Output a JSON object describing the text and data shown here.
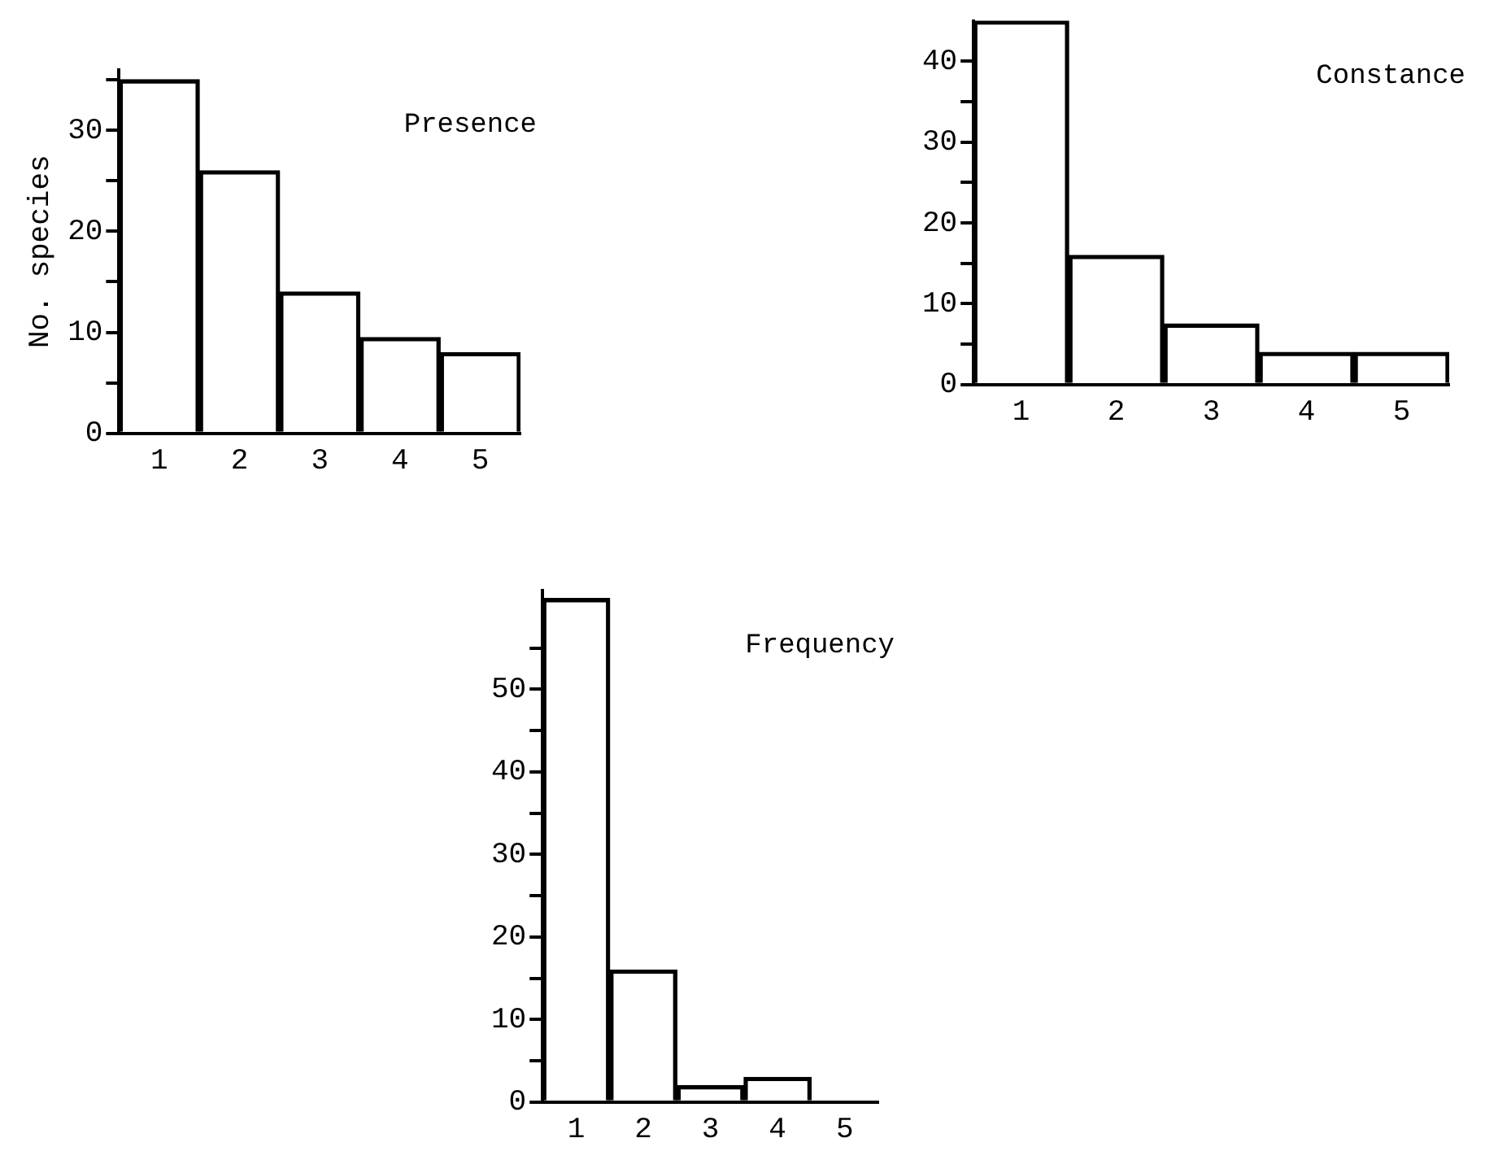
{
  "chart_data": [
    {
      "type": "bar",
      "title": "Presence",
      "ylabel": "No. species",
      "categories": [
        "1",
        "2",
        "3",
        "4",
        "5"
      ],
      "values": [
        35,
        26,
        14,
        9.5,
        8
      ],
      "color": "#000000",
      "ylim": [
        0,
        36
      ],
      "yticks": [
        0,
        {
          "value": 5,
          "label": null
        },
        10,
        {
          "value": 15,
          "label": null
        },
        20,
        {
          "value": 25,
          "label": null
        },
        30,
        {
          "value": 35,
          "label": null
        }
      ],
      "grid": false,
      "legend": false
    },
    {
      "type": "bar",
      "title": "Constance",
      "categories": [
        "1",
        "2",
        "3",
        "4",
        "5"
      ],
      "values": [
        45,
        16,
        7.5,
        4,
        4
      ],
      "color": "#000000",
      "ylim": [
        0,
        45
      ],
      "yticks": [
        0,
        {
          "value": 5,
          "label": null
        },
        10,
        {
          "value": 15,
          "label": null
        },
        20,
        {
          "value": 25,
          "label": null
        },
        30,
        {
          "value": 35,
          "label": null
        },
        40
      ],
      "grid": false,
      "legend": false
    },
    {
      "type": "bar",
      "title": "Frequency",
      "categories": [
        "1",
        "2",
        "3",
        "4",
        "5"
      ],
      "values": [
        61,
        16,
        2,
        3,
        0
      ],
      "color": "#000000",
      "ylim": [
        0,
        62
      ],
      "yticks": [
        0,
        {
          "value": 5,
          "label": null
        },
        10,
        {
          "value": 15,
          "label": null
        },
        20,
        {
          "value": 25,
          "label": null
        },
        30,
        {
          "value": 35,
          "label": null
        },
        40,
        {
          "value": 45,
          "label": null
        },
        50,
        {
          "value": 55,
          "label": null
        }
      ],
      "grid": false,
      "legend": false
    }
  ]
}
